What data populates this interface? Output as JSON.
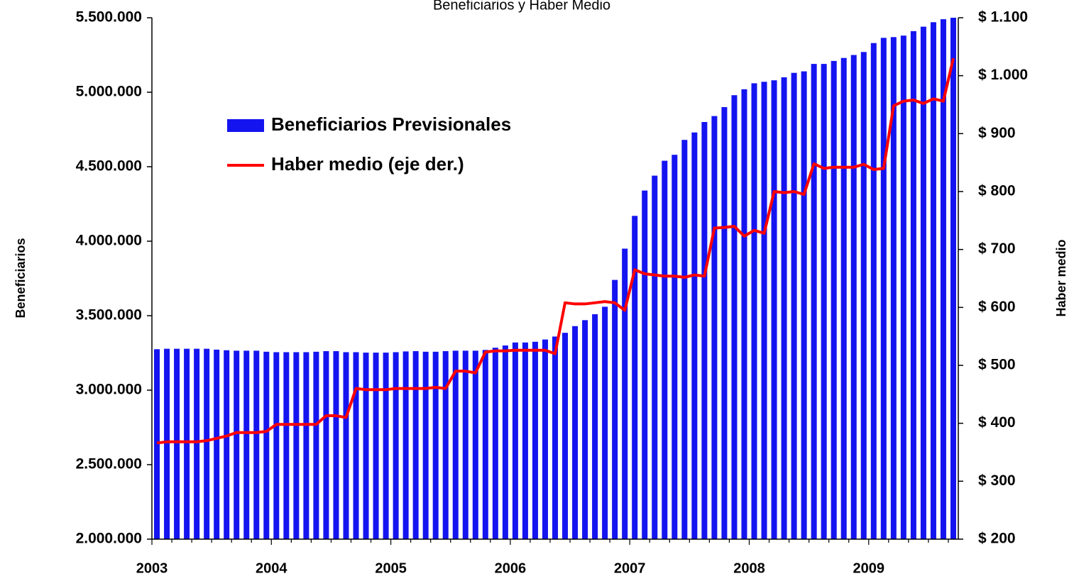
{
  "chart_data": {
    "type": "bar_line",
    "title": "Beneficiarios y Haber Medio",
    "y_label": "Beneficiarios",
    "y2_label": "Haber medio",
    "categories": [
      "2003",
      null,
      null,
      null,
      null,
      null,
      null,
      null,
      null,
      null,
      null,
      null,
      "2004",
      null,
      null,
      null,
      null,
      null,
      null,
      null,
      null,
      null,
      null,
      null,
      "2005",
      null,
      null,
      null,
      null,
      null,
      null,
      null,
      null,
      null,
      null,
      null,
      "2006",
      null,
      null,
      null,
      null,
      null,
      null,
      null,
      null,
      null,
      null,
      null,
      "2007",
      null,
      null,
      null,
      null,
      null,
      null,
      null,
      null,
      null,
      null,
      null,
      "2008",
      null,
      null,
      null,
      null,
      null,
      null,
      null,
      null,
      null,
      null,
      null,
      "2009",
      null,
      null,
      null,
      null,
      null,
      null,
      null,
      null
    ],
    "series": [
      {
        "name": "Beneficiarios Previsionales",
        "type": "bar",
        "color": "#1414f0",
        "values": [
          3275000,
          3278000,
          3278000,
          3278000,
          3278000,
          3278000,
          3272000,
          3268000,
          3265000,
          3265000,
          3265000,
          3258000,
          3255000,
          3255000,
          3255000,
          3255000,
          3258000,
          3262000,
          3262000,
          3255000,
          3255000,
          3252000,
          3252000,
          3252000,
          3255000,
          3260000,
          3262000,
          3258000,
          3258000,
          3262000,
          3265000,
          3265000,
          3265000,
          3270000,
          3285000,
          3300000,
          3320000,
          3320000,
          3325000,
          3340000,
          3360000,
          3385000,
          3430000,
          3470000,
          3510000,
          3560000,
          3740000,
          3950000,
          4170000,
          4340000,
          4440000,
          4540000,
          4580000,
          4680000,
          4730000,
          4800000,
          4840000,
          4900000,
          4980000,
          5020000,
          5060000,
          5070000,
          5080000,
          5100000,
          5130000,
          5140000,
          5190000,
          5190000,
          5210000,
          5230000,
          5250000,
          5270000,
          5330000,
          5365000,
          5370000,
          5380000,
          5410000,
          5440000,
          5470000,
          5490000,
          5500000
        ]
      },
      {
        "name": "Haber medio (eje der.)",
        "type": "line",
        "axis": "y2",
        "color": "#ff0000",
        "values": [
          366,
          368,
          368,
          368,
          368,
          370,
          374,
          378,
          384,
          384,
          384,
          386,
          398,
          398,
          398,
          398,
          398,
          413,
          413,
          410,
          460,
          458,
          458,
          458,
          460,
          460,
          460,
          460,
          462,
          460,
          490,
          490,
          487,
          523,
          525,
          525,
          526,
          526,
          526,
          526,
          520,
          608,
          606,
          606,
          608,
          610,
          608,
          595,
          665,
          658,
          656,
          654,
          654,
          652,
          656,
          654,
          737,
          738,
          740,
          723,
          733,
          728,
          800,
          798,
          800,
          795,
          848,
          840,
          842,
          842,
          842,
          847,
          838,
          840,
          948,
          956,
          958,
          952,
          960,
          956,
          1030
        ]
      }
    ],
    "ylim": [
      2000000,
      5500000
    ],
    "yticks": [
      {
        "value": 2000000,
        "label": "2.000.000"
      },
      {
        "value": 2500000,
        "label": "2.500.000"
      },
      {
        "value": 3000000,
        "label": "3.000.000"
      },
      {
        "value": 3500000,
        "label": "3.500.000"
      },
      {
        "value": 4000000,
        "label": "4.000.000"
      },
      {
        "value": 4500000,
        "label": "4.500.000"
      },
      {
        "value": 5000000,
        "label": "5.000.000"
      },
      {
        "value": 5500000,
        "label": "5.500.000"
      }
    ],
    "y2lim": [
      200,
      1100
    ],
    "y2ticks": [
      {
        "value": 200,
        "label": "$ 200"
      },
      {
        "value": 300,
        "label": "$ 300"
      },
      {
        "value": 400,
        "label": "$ 400"
      },
      {
        "value": 500,
        "label": "$ 500"
      },
      {
        "value": 600,
        "label": "$ 600"
      },
      {
        "value": 700,
        "label": "$ 700"
      },
      {
        "value": 800,
        "label": "$ 800"
      },
      {
        "value": 900,
        "label": "$ 900"
      },
      {
        "value": 1000,
        "label": "$ 1.000"
      },
      {
        "value": 1100,
        "label": "$ 1.100"
      }
    ],
    "grid": false,
    "legend": "upper left"
  }
}
